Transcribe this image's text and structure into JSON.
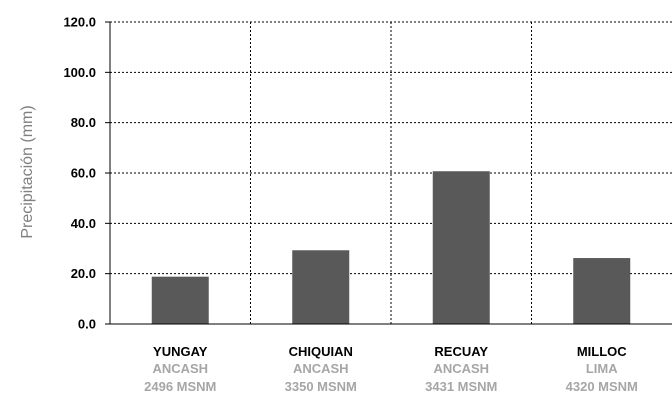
{
  "chart_data": {
    "type": "bar",
    "title": "",
    "xlabel": "",
    "ylabel": "Precipitación (mm)",
    "ylim": [
      0,
      120
    ],
    "yticks": [
      "0.0",
      "20.0",
      "40.0",
      "60.0",
      "80.0",
      "100.0",
      "120.0"
    ],
    "categories": [
      {
        "name": "YUNGAY",
        "region": "ANCASH",
        "altitude": "2496 MSNM"
      },
      {
        "name": "CHIQUIAN",
        "region": "ANCASH",
        "altitude": "3350 MSNM"
      },
      {
        "name": "RECUAY",
        "region": "ANCASH",
        "altitude": "3431 MSNM"
      },
      {
        "name": "MILLOC",
        "region": "LIMA",
        "altitude": "4320 MSNM"
      }
    ],
    "values": [
      18.8,
      29.3,
      60.7,
      26.2
    ],
    "grid": true,
    "bar_color": "#595959"
  }
}
